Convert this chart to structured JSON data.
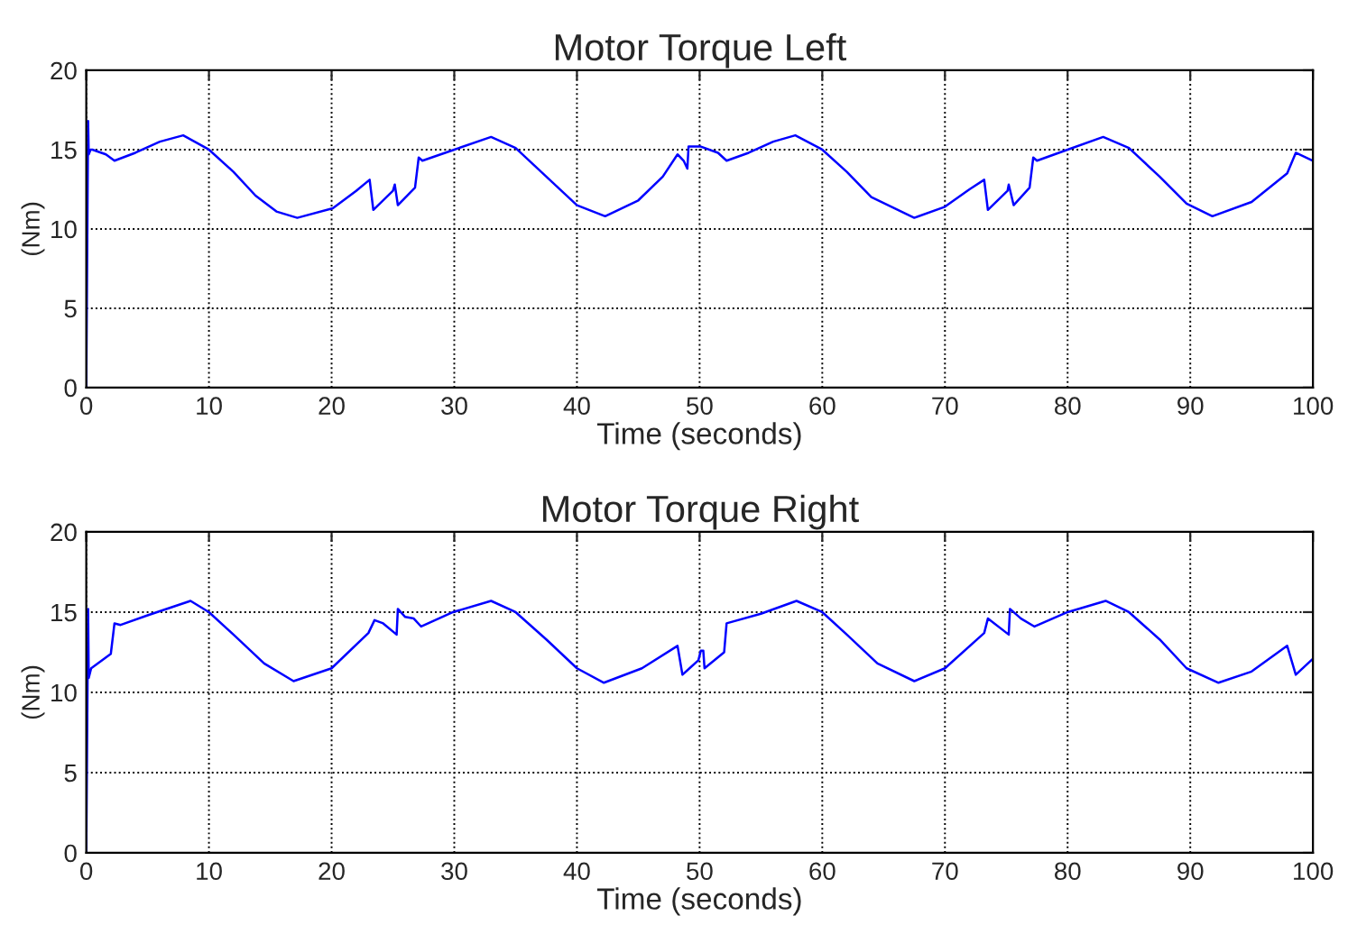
{
  "chart_data": [
    {
      "type": "line",
      "title": "Motor Torque Left",
      "xlabel": "Time (seconds)",
      "ylabel": "(Nm)",
      "xlim": [
        0,
        100
      ],
      "ylim": [
        0,
        20
      ],
      "xticks": [
        0,
        10,
        20,
        30,
        40,
        50,
        60,
        70,
        80,
        90,
        100
      ],
      "yticks": [
        0,
        5,
        10,
        15,
        20
      ],
      "grid": true,
      "series": [
        {
          "color": "#0000ff",
          "x": [
            0,
            0.15,
            0.2,
            0.35,
            0.5,
            1.6,
            2.3,
            4,
            6,
            7.9,
            10,
            12,
            13.8,
            15.5,
            17.2,
            20.1,
            22,
            23.1,
            23.4,
            25,
            25.15,
            25.4,
            26.8,
            27.1,
            27.4,
            30,
            33,
            35,
            37.5,
            40,
            42.3,
            45,
            47,
            48.2,
            48.7,
            49,
            49.1,
            50.05,
            51.5,
            52.2,
            54,
            56,
            57.8,
            60,
            62,
            64,
            67.5,
            70,
            72,
            73.2,
            73.5,
            75.1,
            75.2,
            75.6,
            76.9,
            77.2,
            77.5,
            80,
            82.9,
            85,
            87.5,
            89.7,
            91.8,
            95,
            97.9,
            98.6,
            100
          ],
          "values": [
            0,
            16.8,
            14.7,
            15.0,
            15.0,
            14.7,
            14.3,
            14.8,
            15.5,
            15.9,
            15.0,
            13.6,
            12.1,
            11.1,
            10.7,
            11.3,
            12.4,
            13.1,
            11.2,
            12.4,
            12.8,
            11.5,
            12.6,
            14.5,
            14.3,
            15.0,
            15.8,
            15.1,
            13.3,
            11.5,
            10.8,
            11.8,
            13.3,
            14.7,
            14.3,
            13.8,
            15.2,
            15.2,
            14.8,
            14.3,
            14.8,
            15.5,
            15.9,
            15.0,
            13.6,
            12.0,
            10.7,
            11.4,
            12.5,
            13.1,
            11.2,
            12.4,
            12.8,
            11.5,
            12.6,
            14.5,
            14.3,
            15.0,
            15.8,
            15.1,
            13.3,
            11.6,
            10.8,
            11.7,
            13.5,
            14.8,
            14.3
          ]
        }
      ]
    },
    {
      "type": "line",
      "title": "Motor Torque Right",
      "xlabel": "Time (seconds)",
      "ylabel": "(Nm)",
      "xlim": [
        0,
        100
      ],
      "ylim": [
        0,
        20
      ],
      "xticks": [
        0,
        10,
        20,
        30,
        40,
        50,
        60,
        70,
        80,
        90,
        100
      ],
      "yticks": [
        0,
        5,
        10,
        15,
        20
      ],
      "grid": true,
      "series": [
        {
          "color": "#0000ff",
          "x": [
            0,
            0.15,
            0.2,
            0.4,
            2,
            2.3,
            2.8,
            5,
            8.5,
            10,
            12,
            14.5,
            16.9,
            20,
            23,
            23.5,
            24.2,
            25.3,
            25.4,
            26,
            26.7,
            27.3,
            29.9,
            33,
            35,
            37.5,
            40,
            42.2,
            45.3,
            48.2,
            48.6,
            49.9,
            50.1,
            50.3,
            50.4,
            52,
            52.2,
            55,
            57.9,
            60,
            62,
            64.5,
            67.5,
            70,
            73.2,
            73.5,
            75.2,
            75.3,
            76.2,
            77.3,
            80,
            83.1,
            85,
            87.5,
            89.7,
            92.3,
            95,
            97.9,
            98.6,
            100
          ],
          "values": [
            0,
            15.2,
            10.9,
            11.5,
            12.4,
            14.3,
            14.2,
            14.8,
            15.7,
            15.0,
            13.6,
            11.8,
            10.7,
            11.5,
            13.7,
            14.5,
            14.3,
            13.6,
            15.2,
            14.7,
            14.6,
            14.1,
            15.0,
            15.7,
            15.0,
            13.3,
            11.5,
            10.6,
            11.5,
            12.9,
            11.1,
            12.0,
            12.6,
            12.6,
            11.5,
            12.5,
            14.3,
            14.9,
            15.7,
            15.0,
            13.6,
            11.8,
            10.7,
            11.5,
            13.7,
            14.6,
            13.6,
            15.2,
            14.6,
            14.1,
            15.0,
            15.7,
            15.0,
            13.3,
            11.5,
            10.6,
            11.3,
            12.9,
            11.1,
            12.1
          ]
        }
      ]
    }
  ]
}
